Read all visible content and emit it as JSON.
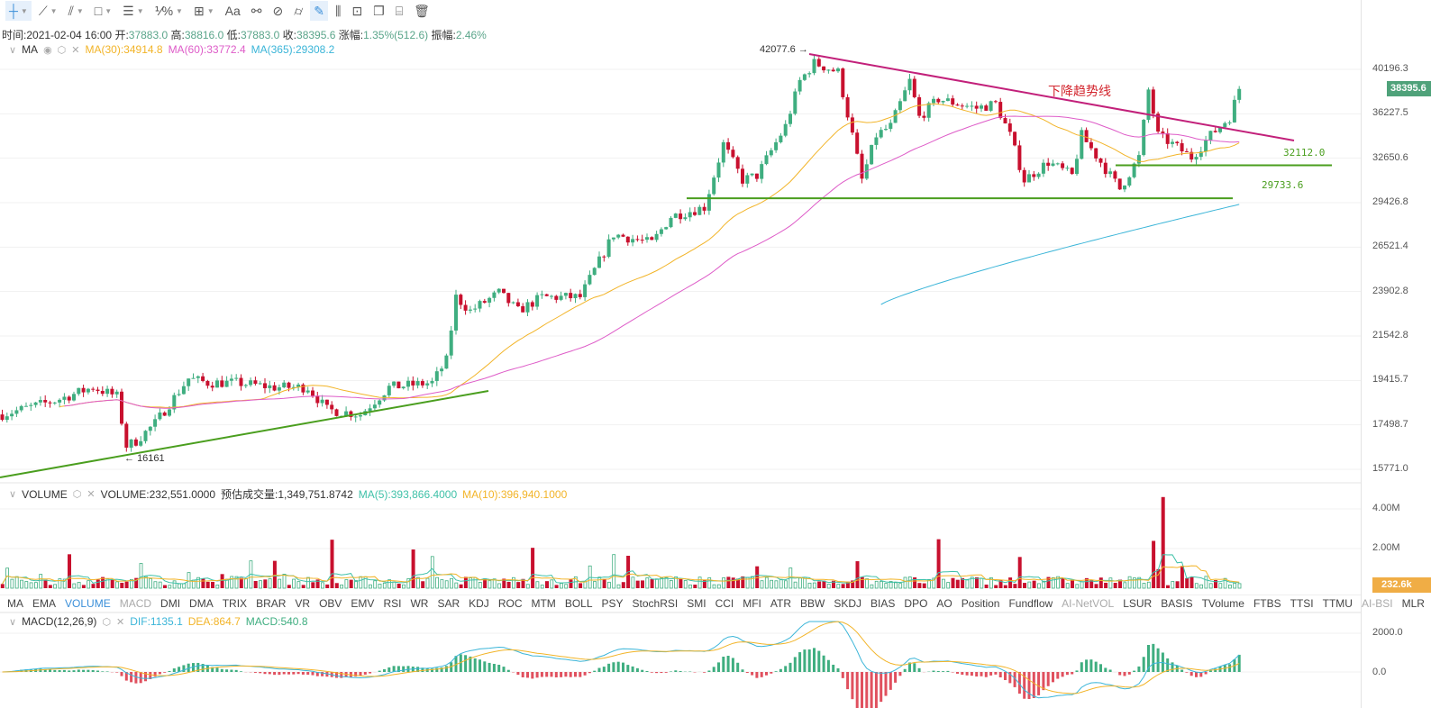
{
  "toolbar": {
    "tools": [
      "crosshair",
      "trend-line",
      "parallel-lines",
      "rectangle",
      "horizontal-lines",
      "fibonacci",
      "measure",
      "text",
      "pattern",
      "link",
      "ruler",
      "brush",
      "bar-pattern",
      "lock",
      "bookmark",
      "calendar-edit",
      "trash"
    ],
    "text_tool": "Aa",
    "fib_label": "⅟%"
  },
  "info": {
    "time_label": "时间:",
    "time": "2021-02-04 16:00",
    "open_label": "开:",
    "open": "37883.0",
    "high_label": "高:",
    "high": "38816.0",
    "low_label": "低:",
    "low": "37883.0",
    "close_label": "收:",
    "close": "38395.6",
    "change_label": "涨幅:",
    "change": "1.35%(512.6)",
    "amp_label": "振幅:",
    "amp": "2.46%"
  },
  "ma": {
    "name": "MA",
    "ma30": "MA(30):34914.8",
    "ma60": "MA(60):33772.4",
    "ma365": "MA(365):29308.2"
  },
  "volume": {
    "name": "VOLUME",
    "value": "VOLUME:232,551.0000",
    "est": "预估成交量:1,349,751.8742",
    "ma5": "MA(5):393,866.4000",
    "ma10": "MA(10):396,940.1000",
    "badge": "232.6k",
    "ticks": [
      "4.00M",
      "2.00M"
    ]
  },
  "macd": {
    "name": "MACD(12,26,9)",
    "dif": "DIF:1135.1",
    "dea": "DEA:864.7",
    "macd": "MACD:540.8",
    "ticks": [
      "2000.0",
      "0.0"
    ]
  },
  "tabs": [
    "MA",
    "EMA",
    "VOLUME",
    "MACD",
    "DMI",
    "DMA",
    "TRIX",
    "BRAR",
    "VR",
    "OBV",
    "EMV",
    "RSI",
    "WR",
    "SAR",
    "KDJ",
    "ROC",
    "MTM",
    "BOLL",
    "PSY",
    "StochRSI",
    "SMI",
    "CCI",
    "MFI",
    "ATR",
    "BBW",
    "SKDJ",
    "BIAS",
    "DPO",
    "AO",
    "Position",
    "Fundflow",
    "AI-NetVOL",
    "LSUR",
    "BASIS",
    "TVolume",
    "FTBS",
    "TTSI",
    "TTMU",
    "AI-BSI",
    "MLR"
  ],
  "selected_tab": "VOLUME",
  "dim_tabs": [
    "MACD",
    "AI-NetVOL",
    "AI-BSI"
  ],
  "annotations": {
    "high": "42077.6",
    "low": "16161",
    "trend": "下降趋势线",
    "support1": "32112.0",
    "support2": "29733.6"
  },
  "colors": {
    "up": "#3fae80",
    "down": "#c8102e",
    "ma30": "#f2b428",
    "ma60": "#de5cc8",
    "ma365": "#3bb5d8",
    "trend": "#c2207a",
    "support": "#4a9e1e",
    "price_badge": "#4fa27a",
    "vol_badge": "#f0ad45"
  },
  "chart_data": {
    "type": "candlestick",
    "price_ticks": [
      40196.3,
      36227.5,
      32650.6,
      29426.8,
      26521.4,
      23902.8,
      21542.8,
      19415.7,
      17498.7,
      15771.0
    ],
    "price_scale": "log",
    "last_price": "38395.6",
    "candle_count": 260,
    "close_waypoints": [
      [
        0,
        17930
      ],
      [
        11,
        18515
      ],
      [
        19,
        19105
      ],
      [
        24,
        18707
      ],
      [
        26,
        16661
      ],
      [
        28,
        16845
      ],
      [
        32,
        17565
      ],
      [
        39,
        19507
      ],
      [
        43,
        19310
      ],
      [
        49,
        19310
      ],
      [
        57,
        19105
      ],
      [
        64,
        19105
      ],
      [
        68,
        18130
      ],
      [
        75,
        17930
      ],
      [
        81,
        19105
      ],
      [
        90,
        19310
      ],
      [
        93,
        20340
      ],
      [
        95,
        23590
      ],
      [
        98,
        22840
      ],
      [
        104,
        23830
      ],
      [
        108,
        22840
      ],
      [
        113,
        23590
      ],
      [
        121,
        23590
      ],
      [
        128,
        27330
      ],
      [
        136,
        26770
      ],
      [
        140,
        28500
      ],
      [
        147,
        29120
      ],
      [
        151,
        33745
      ],
      [
        155,
        31030
      ],
      [
        158,
        31350
      ],
      [
        164,
        35190
      ],
      [
        167,
        39110
      ],
      [
        170,
        40800
      ],
      [
        175,
        39940
      ],
      [
        178,
        34450
      ],
      [
        180,
        31030
      ],
      [
        183,
        34450
      ],
      [
        186,
        35190
      ],
      [
        190,
        39110
      ],
      [
        192,
        35940
      ],
      [
        196,
        37500
      ],
      [
        204,
        36700
      ],
      [
        208,
        37100
      ],
      [
        211,
        34450
      ],
      [
        214,
        31030
      ],
      [
        219,
        32360
      ],
      [
        224,
        31350
      ],
      [
        226,
        34450
      ],
      [
        230,
        32360
      ],
      [
        234,
        30380
      ],
      [
        238,
        32720
      ],
      [
        240,
        38300
      ],
      [
        242,
        34450
      ],
      [
        245,
        33745
      ],
      [
        249,
        32720
      ],
      [
        253,
        34450
      ],
      [
        257,
        35940
      ],
      [
        259,
        38395.6
      ]
    ],
    "ma365_range": [
      23190,
      29308.2
    ],
    "lines": [
      {
        "name": "uptrend",
        "color": "support"
      },
      {
        "name": "下降趋势线",
        "color": "trend"
      },
      {
        "name": "support",
        "price": 32112.0
      },
      {
        "name": "support",
        "price": 29733.6
      }
    ]
  }
}
